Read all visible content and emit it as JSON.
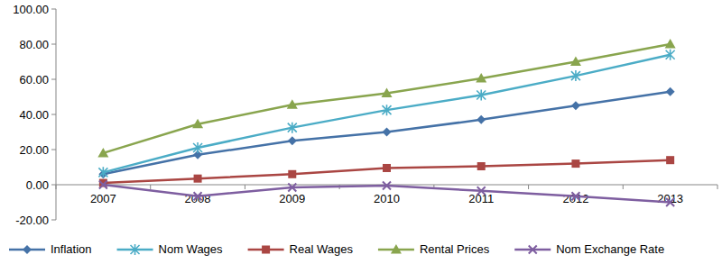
{
  "chart_data": {
    "type": "line",
    "categories": [
      "2007",
      "2008",
      "2009",
      "2010",
      "2011",
      "2012",
      "2013"
    ],
    "series": [
      {
        "name": "Inflation",
        "color": "#4572a7",
        "marker": "diamond",
        "values": [
          6,
          17,
          25,
          30,
          37,
          45,
          53
        ]
      },
      {
        "name": "Nom Wages",
        "color": "#4bacc6",
        "marker": "star",
        "values": [
          7,
          21,
          32.5,
          42.5,
          51,
          62,
          74
        ]
      },
      {
        "name": "Real Wages",
        "color": "#aa4643",
        "marker": "square",
        "values": [
          1,
          3.5,
          6,
          9.5,
          10.5,
          12,
          14
        ]
      },
      {
        "name": "Rental Prices",
        "color": "#89a54e",
        "marker": "triangle",
        "values": [
          18,
          34.5,
          45.5,
          52,
          60.5,
          70,
          80
        ]
      },
      {
        "name": "Nom Exchange Rate",
        "color": "#7e5ea0",
        "marker": "x",
        "values": [
          0,
          -6.5,
          -1.5,
          -0.5,
          -3.5,
          -6.5,
          -10
        ]
      }
    ],
    "ylim": [
      -20,
      100
    ],
    "yticks": [
      {
        "value": -20,
        "label": "-20.00"
      },
      {
        "value": 0,
        "label": "0.00"
      },
      {
        "value": 20,
        "label": "20.00"
      },
      {
        "value": 40,
        "label": "40.00"
      },
      {
        "value": 60,
        "label": "60.00"
      },
      {
        "value": 80,
        "label": "80.00"
      },
      {
        "value": 100,
        "label": "100.00"
      }
    ],
    "grid": false,
    "legend": "bottom"
  }
}
